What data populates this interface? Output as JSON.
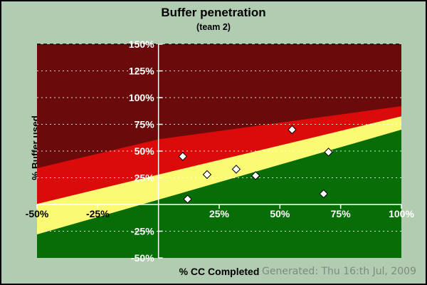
{
  "window": {
    "background": "#b1ccb1",
    "border_color": "#000000"
  },
  "footer": {
    "generated": "Generated: Thu 16:th Jul, 2009",
    "color": "#7f8b7f"
  },
  "chart_data": {
    "type": "scatter",
    "title": "Buffer penetration",
    "subtitle": "(team 2)",
    "xlabel": "% CC Completed",
    "ylabel": "% Buffer used",
    "xlim": [
      -50,
      100
    ],
    "ylim": [
      -50,
      150
    ],
    "legend": "none",
    "grid": {
      "horizontal_dashed_white": [
        125,
        100,
        75,
        50,
        25,
        -25
      ],
      "top_dashed_black": 150,
      "solid_white_vertical_x": 0,
      "solid_white_horizontal_y": 0,
      "dash_color": "#ffffff",
      "top_dash_color": "#140000",
      "axis_line_color": "#ffffff"
    },
    "y_ticks": [
      {
        "value": 150,
        "label": "150%",
        "label_color": "#ffffff"
      },
      {
        "value": 125,
        "label": "125%",
        "label_color": "#ffffff"
      },
      {
        "value": 100,
        "label": "100%",
        "label_color": "#ffffff"
      },
      {
        "value": 75,
        "label": "75%",
        "label_color": "#ffffff"
      },
      {
        "value": 50,
        "label": "50%",
        "label_color": "#ffffff"
      },
      {
        "value": 25,
        "label": "25%",
        "label_color": "#ffffff"
      },
      {
        "value": -25,
        "label": "-25%",
        "label_color": "#ffffff"
      },
      {
        "value": -50,
        "label": "-50%",
        "label_color": "#ffffff"
      }
    ],
    "x_ticks": [
      {
        "value": -50,
        "label": "-50%",
        "label_color": "#000000"
      },
      {
        "value": -25,
        "label": "-25%",
        "label_color": "#000000"
      },
      {
        "value": 25,
        "label": "25%",
        "label_color": "#ffffff"
      },
      {
        "value": 50,
        "label": "50%",
        "label_color": "#ffffff"
      },
      {
        "value": 75,
        "label": "75%",
        "label_color": "#ffffff"
      },
      {
        "value": 100,
        "label": "100%",
        "label_color": "#ffffff"
      }
    ],
    "zones": [
      {
        "name": "dark-red-zone",
        "color": "#6a0a0a",
        "top_boundary": null
      },
      {
        "name": "red-zone",
        "color": "#dc0b0b",
        "top_boundary": [
          [
            -50,
            34
          ],
          [
            0,
            61
          ],
          [
            100,
            92
          ]
        ]
      },
      {
        "name": "yellow-zone",
        "color": "#fafa73",
        "top_boundary": [
          [
            -50,
            0.5
          ],
          [
            0,
            28
          ],
          [
            100,
            82.5
          ]
        ]
      },
      {
        "name": "green-zone",
        "color": "#076e07",
        "top_boundary": [
          [
            -50,
            -28
          ],
          [
            0,
            4.5
          ],
          [
            100,
            70
          ]
        ]
      }
    ],
    "points": [
      [
        10,
        45
      ],
      [
        12,
        5
      ],
      [
        20,
        28
      ],
      [
        32,
        33
      ],
      [
        40,
        27
      ],
      [
        55,
        70
      ],
      [
        68,
        10
      ],
      [
        70,
        49
      ]
    ],
    "marker": {
      "shape": "diamond",
      "fill": "#ffffff",
      "stroke": "#000000",
      "size": 11
    }
  }
}
